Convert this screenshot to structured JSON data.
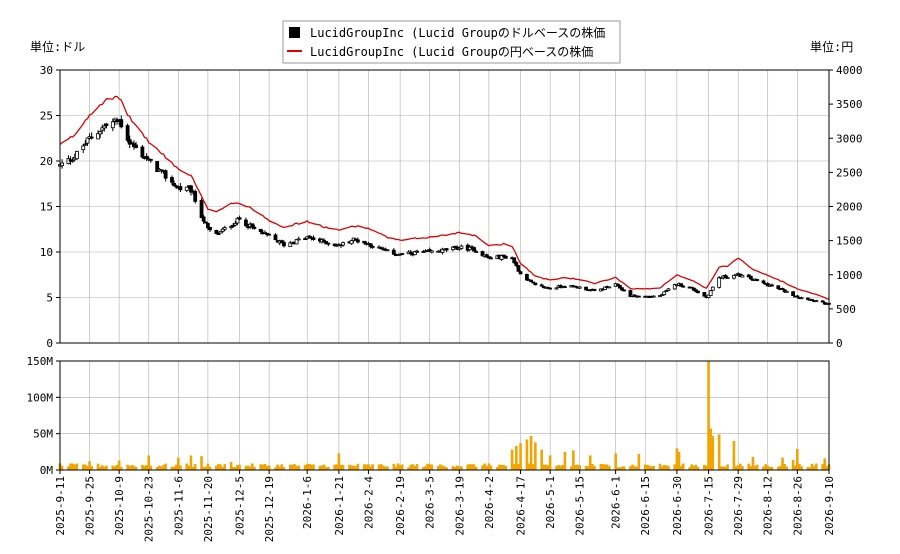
{
  "legend": {
    "usd": "LucidGroupInc (Lucid Groupのドルベースの株価",
    "jpy": "LucidGroupInc (Lucid Groupの円ベースの株価"
  },
  "units": {
    "left": "単位:ドル",
    "right": "単位:円"
  },
  "colors": {
    "candle": "#000000",
    "jpy_line": "#dd0000",
    "volume": "#f2a400",
    "grid": "#b0b0b0"
  },
  "chart_data": [
    {
      "type": "candlestick+line",
      "x_range": [
        "2025-09-11",
        "2026-09-10"
      ],
      "x_ticks": [
        "2025-9-11",
        "2025-9-25",
        "2025-10-9",
        "2025-10-23",
        "2025-11-6",
        "2025-11-20",
        "2025-12-5",
        "2025-12-19",
        "2026-1-6",
        "2026-1-21",
        "2026-2-4",
        "2026-2-19",
        "2026-3-5",
        "2026-3-19",
        "2026-4-2",
        "2026-4-17",
        "2026-5-1",
        "2026-5-15",
        "2026-6-1",
        "2026-6-15",
        "2026-6-30",
        "2026-7-15",
        "2026-7-29",
        "2026-8-12",
        "2026-8-26",
        "2026-9-10"
      ],
      "y_left": {
        "min": 0,
        "max": 30,
        "ticks": [
          0,
          5,
          10,
          15,
          20,
          25,
          30
        ]
      },
      "y_right": {
        "min": 0,
        "max": 4000,
        "ticks": [
          0,
          500,
          1000,
          1500,
          2000,
          2500,
          3000,
          3500,
          4000
        ]
      },
      "grid": true,
      "legend_position": "top-center",
      "usd_close_keypoints": [
        [
          "2025-09-11",
          19.5
        ],
        [
          "2025-09-18",
          20.5
        ],
        [
          "2025-09-25",
          22.5
        ],
        [
          "2025-10-02",
          23.8
        ],
        [
          "2025-10-09",
          24.5
        ],
        [
          "2025-10-14",
          22.0
        ],
        [
          "2025-10-23",
          20.0
        ],
        [
          "2025-10-30",
          18.5
        ],
        [
          "2025-11-06",
          17.0
        ],
        [
          "2025-11-12",
          16.8
        ],
        [
          "2025-11-17",
          14.0
        ],
        [
          "2025-11-20",
          12.5
        ],
        [
          "2025-11-24",
          11.9
        ],
        [
          "2025-12-01",
          13.0
        ],
        [
          "2025-12-05",
          13.6
        ],
        [
          "2025-12-12",
          12.5
        ],
        [
          "2025-12-19",
          11.7
        ],
        [
          "2025-12-26",
          10.8
        ],
        [
          "2026-01-06",
          11.6
        ],
        [
          "2026-01-14",
          11.1
        ],
        [
          "2026-01-21",
          10.7
        ],
        [
          "2026-01-28",
          11.4
        ],
        [
          "2026-02-04",
          10.9
        ],
        [
          "2026-02-12",
          10.1
        ],
        [
          "2026-02-19",
          9.7
        ],
        [
          "2026-02-26",
          9.9
        ],
        [
          "2026-03-05",
          10.0
        ],
        [
          "2026-03-12",
          10.2
        ],
        [
          "2026-03-19",
          10.5
        ],
        [
          "2026-03-26",
          10.3
        ],
        [
          "2026-04-02",
          9.3
        ],
        [
          "2026-04-09",
          9.5
        ],
        [
          "2026-04-13",
          9.3
        ],
        [
          "2026-04-17",
          7.6
        ],
        [
          "2026-04-24",
          6.3
        ],
        [
          "2026-05-01",
          6.0
        ],
        [
          "2026-05-08",
          6.3
        ],
        [
          "2026-05-15",
          6.1
        ],
        [
          "2026-05-22",
          5.7
        ],
        [
          "2026-06-01",
          6.4
        ],
        [
          "2026-06-08",
          5.2
        ],
        [
          "2026-06-15",
          5.1
        ],
        [
          "2026-06-22",
          5.2
        ],
        [
          "2026-06-30",
          6.5
        ],
        [
          "2026-07-07",
          6.0
        ],
        [
          "2026-07-14",
          5.0
        ],
        [
          "2026-07-20",
          7.2
        ],
        [
          "2026-07-24",
          7.3
        ],
        [
          "2026-07-29",
          7.5
        ],
        [
          "2026-08-05",
          7.0
        ],
        [
          "2026-08-12",
          6.4
        ],
        [
          "2026-08-19",
          5.8
        ],
        [
          "2026-08-26",
          5.1
        ],
        [
          "2026-09-03",
          4.7
        ],
        [
          "2026-09-10",
          4.2
        ]
      ],
      "jpy_close_keypoints": [
        [
          "2025-09-11",
          2900
        ],
        [
          "2025-09-18",
          3050
        ],
        [
          "2025-09-25",
          3350
        ],
        [
          "2025-10-02",
          3550
        ],
        [
          "2025-10-09",
          3600
        ],
        [
          "2025-10-14",
          3300
        ],
        [
          "2025-10-23",
          2950
        ],
        [
          "2025-10-30",
          2750
        ],
        [
          "2025-11-06",
          2550
        ],
        [
          "2025-11-12",
          2450
        ],
        [
          "2025-11-17",
          2150
        ],
        [
          "2025-11-20",
          1950
        ],
        [
          "2025-11-24",
          1930
        ],
        [
          "2025-12-01",
          2050
        ],
        [
          "2025-12-05",
          2050
        ],
        [
          "2025-12-12",
          1950
        ],
        [
          "2025-12-19",
          1800
        ],
        [
          "2025-12-26",
          1700
        ],
        [
          "2026-01-06",
          1780
        ],
        [
          "2026-01-14",
          1700
        ],
        [
          "2026-01-21",
          1650
        ],
        [
          "2026-01-28",
          1720
        ],
        [
          "2026-02-04",
          1680
        ],
        [
          "2026-02-12",
          1560
        ],
        [
          "2026-02-19",
          1500
        ],
        [
          "2026-02-26",
          1530
        ],
        [
          "2026-03-05",
          1550
        ],
        [
          "2026-03-12",
          1580
        ],
        [
          "2026-03-19",
          1620
        ],
        [
          "2026-03-26",
          1580
        ],
        [
          "2026-04-02",
          1430
        ],
        [
          "2026-04-09",
          1450
        ],
        [
          "2026-04-13",
          1420
        ],
        [
          "2026-04-17",
          1170
        ],
        [
          "2026-04-24",
          980
        ],
        [
          "2026-05-01",
          920
        ],
        [
          "2026-05-08",
          960
        ],
        [
          "2026-05-15",
          930
        ],
        [
          "2026-05-22",
          870
        ],
        [
          "2026-06-01",
          960
        ],
        [
          "2026-06-08",
          800
        ],
        [
          "2026-06-15",
          790
        ],
        [
          "2026-06-22",
          810
        ],
        [
          "2026-06-30",
          1000
        ],
        [
          "2026-07-07",
          920
        ],
        [
          "2026-07-14",
          800
        ],
        [
          "2026-07-20",
          1110
        ],
        [
          "2026-07-24",
          1130
        ],
        [
          "2026-07-29",
          1250
        ],
        [
          "2026-08-05",
          1080
        ],
        [
          "2026-08-12",
          990
        ],
        [
          "2026-08-19",
          900
        ],
        [
          "2026-08-26",
          790
        ],
        [
          "2026-09-03",
          720
        ],
        [
          "2026-09-10",
          640
        ]
      ]
    },
    {
      "type": "bar",
      "title": "",
      "y_range": [
        0,
        150000000
      ],
      "y_ticks": [
        0,
        50000000,
        100000000,
        150000000
      ],
      "y_tick_labels": [
        "0M",
        "50M",
        "100M",
        "150M"
      ],
      "grid": true,
      "volume_baseline": 6000000,
      "volume_spikes": [
        [
          "2025-09-11",
          9000000
        ],
        [
          "2025-09-25",
          12000000
        ],
        [
          "2025-10-09",
          13000000
        ],
        [
          "2025-10-23",
          20000000
        ],
        [
          "2025-11-06",
          17000000
        ],
        [
          "2025-11-12",
          20000000
        ],
        [
          "2025-11-17",
          19000000
        ],
        [
          "2025-12-01",
          11000000
        ],
        [
          "2026-01-21",
          23000000
        ],
        [
          "2026-03-05",
          8000000
        ],
        [
          "2026-04-02",
          9000000
        ],
        [
          "2026-04-13",
          28000000
        ],
        [
          "2026-04-15",
          33000000
        ],
        [
          "2026-04-17",
          37000000
        ],
        [
          "2026-04-20",
          42000000
        ],
        [
          "2026-04-22",
          47000000
        ],
        [
          "2026-04-24",
          38000000
        ],
        [
          "2026-04-27",
          28000000
        ],
        [
          "2026-05-01",
          20000000
        ],
        [
          "2026-05-08",
          25000000
        ],
        [
          "2026-05-12",
          27000000
        ],
        [
          "2026-05-20",
          20000000
        ],
        [
          "2026-06-01",
          23000000
        ],
        [
          "2026-06-12",
          22000000
        ],
        [
          "2026-06-30",
          30000000
        ],
        [
          "2026-07-01",
          25000000
        ],
        [
          "2026-07-15",
          155000000
        ],
        [
          "2026-07-16",
          57000000
        ],
        [
          "2026-07-17",
          47000000
        ],
        [
          "2026-07-20",
          49000000
        ],
        [
          "2026-07-27",
          40000000
        ],
        [
          "2026-08-05",
          18000000
        ],
        [
          "2026-08-19",
          17000000
        ],
        [
          "2026-08-24",
          14000000
        ],
        [
          "2026-08-26",
          29000000
        ],
        [
          "2026-09-08",
          16000000
        ]
      ]
    }
  ]
}
